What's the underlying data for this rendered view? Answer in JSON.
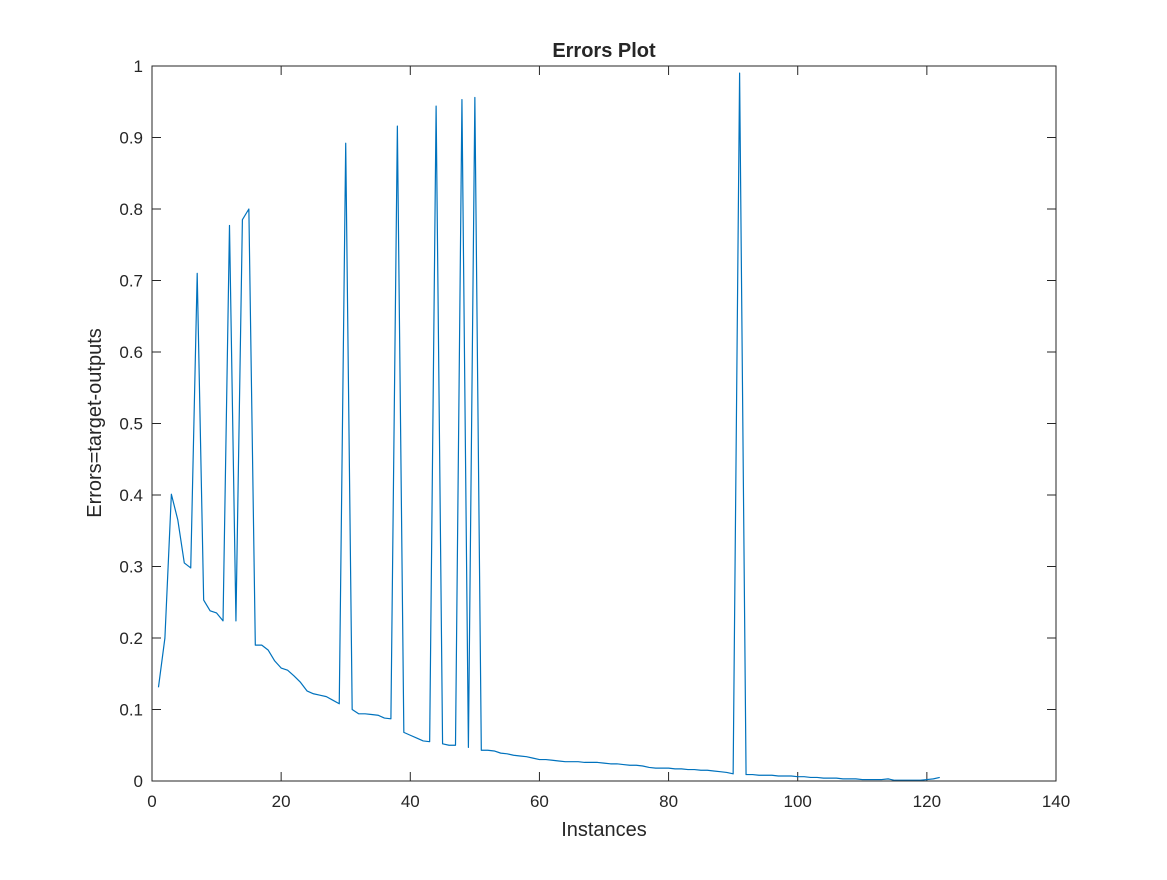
{
  "chart_data": {
    "type": "line",
    "title": "Errors Plot",
    "xlabel": "Instances",
    "ylabel": "Errors=target-outputs",
    "xlim": [
      0,
      140
    ],
    "ylim": [
      0,
      1
    ],
    "xticks": [
      0,
      20,
      40,
      60,
      80,
      100,
      120,
      140
    ],
    "yticks": [
      0,
      0.1,
      0.2,
      0.3,
      0.4,
      0.5,
      0.6,
      0.7,
      0.8,
      0.9,
      1
    ],
    "xtick_labels": [
      "0",
      "20",
      "40",
      "60",
      "80",
      "100",
      "120",
      "140"
    ],
    "ytick_labels": [
      "0",
      "0.1",
      "0.2",
      "0.3",
      "0.4",
      "0.5",
      "0.6",
      "0.7",
      "0.8",
      "0.9",
      "1"
    ],
    "grid": false,
    "box": true,
    "series": [
      {
        "color": "#0072BD",
        "x": [
          1,
          2,
          3,
          4,
          5,
          6,
          7,
          8,
          9,
          10,
          11,
          12,
          13,
          14,
          15,
          16,
          17,
          18,
          19,
          20,
          21,
          22,
          23,
          24,
          25,
          26,
          27,
          28,
          29,
          30,
          31,
          32,
          33,
          34,
          35,
          36,
          37,
          38,
          39,
          40,
          41,
          42,
          43,
          44,
          45,
          46,
          47,
          48,
          49,
          50,
          51,
          52,
          53,
          54,
          55,
          56,
          57,
          58,
          59,
          60,
          61,
          62,
          63,
          64,
          65,
          66,
          67,
          68,
          69,
          70,
          71,
          72,
          73,
          74,
          75,
          76,
          77,
          78,
          79,
          80,
          81,
          82,
          83,
          84,
          85,
          86,
          87,
          88,
          89,
          90,
          91,
          92,
          93,
          94,
          95,
          96,
          97,
          98,
          99,
          100,
          101,
          102,
          103,
          104,
          105,
          106,
          107,
          108,
          109,
          110,
          111,
          112,
          113,
          114,
          115,
          116,
          117,
          118,
          119,
          120,
          121,
          122
        ],
        "y": [
          0.131,
          0.2,
          0.401,
          0.365,
          0.305,
          0.298,
          0.71,
          0.253,
          0.238,
          0.235,
          0.224,
          0.777,
          0.224,
          0.785,
          0.8,
          0.19,
          0.19,
          0.183,
          0.168,
          0.158,
          0.155,
          0.147,
          0.138,
          0.126,
          0.122,
          0.12,
          0.118,
          0.113,
          0.108,
          0.892,
          0.1,
          0.094,
          0.094,
          0.093,
          0.092,
          0.088,
          0.087,
          0.916,
          0.068,
          0.064,
          0.06,
          0.056,
          0.055,
          0.944,
          0.052,
          0.05,
          0.05,
          0.953,
          0.047,
          0.956,
          0.043,
          0.043,
          0.042,
          0.039,
          0.038,
          0.036,
          0.035,
          0.034,
          0.032,
          0.03,
          0.03,
          0.029,
          0.028,
          0.027,
          0.027,
          0.027,
          0.026,
          0.026,
          0.026,
          0.025,
          0.024,
          0.024,
          0.023,
          0.022,
          0.022,
          0.021,
          0.019,
          0.018,
          0.018,
          0.018,
          0.017,
          0.017,
          0.016,
          0.016,
          0.015,
          0.015,
          0.014,
          0.013,
          0.012,
          0.01,
          0.99,
          0.009,
          0.009,
          0.008,
          0.008,
          0.008,
          0.007,
          0.007,
          0.007,
          0.006,
          0.006,
          0.005,
          0.005,
          0.004,
          0.004,
          0.004,
          0.003,
          0.003,
          0.003,
          0.002,
          0.002,
          0.002,
          0.002,
          0.003,
          0.001,
          0.001,
          0.001,
          0.001,
          0.001,
          0.002,
          0.003,
          0.005
        ]
      }
    ]
  }
}
